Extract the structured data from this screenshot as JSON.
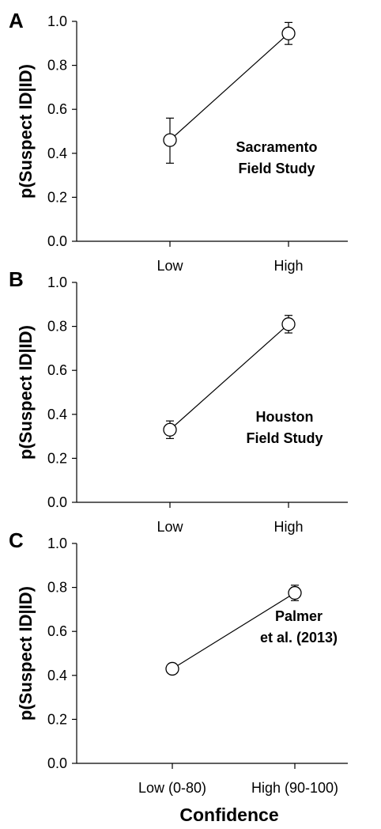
{
  "chart_data": [
    {
      "type": "line",
      "panel_label": "A",
      "categories": [
        "Low",
        "High"
      ],
      "values": [
        0.46,
        0.945
      ],
      "error_low": [
        0.355,
        0.895
      ],
      "error_high": [
        0.56,
        0.995
      ],
      "annotation": [
        "Sacramento",
        "Field Study"
      ],
      "ylabel": "p(Suspect ID|ID)",
      "ylim": [
        0.0,
        1.0
      ],
      "yticks": [
        "0.0",
        "0.2",
        "0.4",
        "0.6",
        "0.8",
        "1.0"
      ],
      "marker": "open-circle"
    },
    {
      "type": "line",
      "panel_label": "B",
      "categories": [
        "Low",
        "High"
      ],
      "values": [
        0.33,
        0.81
      ],
      "error_low": [
        0.29,
        0.77
      ],
      "error_high": [
        0.37,
        0.85
      ],
      "annotation": [
        "Houston",
        "Field Study"
      ],
      "ylabel": "p(Suspect ID|ID)",
      "ylim": [
        0.0,
        1.0
      ],
      "yticks": [
        "0.0",
        "0.2",
        "0.4",
        "0.6",
        "0.8",
        "1.0"
      ],
      "marker": "open-circle"
    },
    {
      "type": "line",
      "panel_label": "C",
      "categories": [
        "Low (0-80)",
        "High (90-100)"
      ],
      "values": [
        0.43,
        0.775
      ],
      "error_low": [
        0.41,
        0.74
      ],
      "error_high": [
        0.45,
        0.81
      ],
      "annotation": [
        "Palmer",
        "et al. (2013)"
      ],
      "ylabel": "p(Suspect ID|ID)",
      "ylim": [
        0.0,
        1.0
      ],
      "yticks": [
        "0.0",
        "0.2",
        "0.4",
        "0.6",
        "0.8",
        "1.0"
      ],
      "marker": "open-circle"
    }
  ],
  "shared_xlabel": "Confidence",
  "colors": {
    "line": "#000000",
    "marker_fill": "#ffffff"
  }
}
